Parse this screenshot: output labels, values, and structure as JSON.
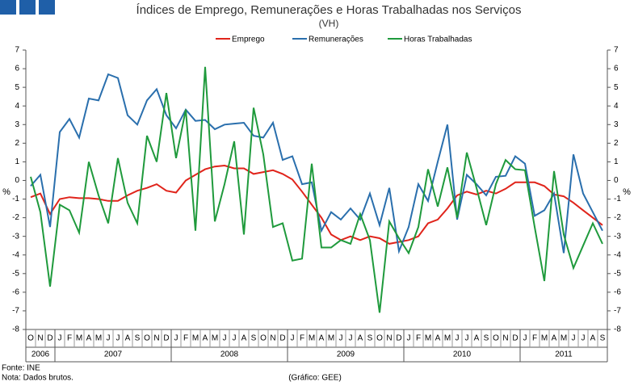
{
  "chart_data": {
    "type": "line",
    "title": "Índices de Emprego, Remunerações e Horas Trabalhadas nos Serviços",
    "subtitle": "(VH)",
    "y_label": "%",
    "y2_label": "%",
    "source": "Fonte: INE",
    "note": "Nota: Dados brutos.",
    "credit": "(Gráfico: GEE)",
    "categories": [
      "O",
      "N",
      "D",
      "J",
      "F",
      "M",
      "A",
      "M",
      "J",
      "J",
      "A",
      "S",
      "O",
      "N",
      "D",
      "J",
      "F",
      "M",
      "A",
      "M",
      "J",
      "J",
      "A",
      "S",
      "O",
      "N",
      "D",
      "J",
      "F",
      "M",
      "A",
      "M",
      "J",
      "J",
      "A",
      "S",
      "O",
      "N",
      "D",
      "J",
      "F",
      "M",
      "A",
      "M",
      "J",
      "J",
      "A",
      "S",
      "O",
      "N",
      "D",
      "J",
      "F",
      "M",
      "A",
      "M",
      "J",
      "J",
      "A",
      "S"
    ],
    "years": [
      "2006",
      "2007",
      "2008",
      "2009",
      "2010",
      "2011"
    ],
    "series": [
      {
        "name": "Emprego",
        "color": "#e0241b",
        "values": [
          -0.9,
          -0.7,
          -1.8,
          -1.0,
          -0.9,
          -0.95,
          -0.95,
          -1.0,
          -1.1,
          -1.1,
          -0.8,
          -0.55,
          -0.4,
          -0.2,
          -0.55,
          -0.65,
          0.0,
          0.3,
          0.6,
          0.75,
          0.8,
          0.65,
          0.65,
          0.35,
          0.45,
          0.55,
          0.35,
          0.05,
          -0.6,
          -1.3,
          -2.0,
          -2.9,
          -3.2,
          -3.0,
          -3.2,
          -3.0,
          -3.1,
          -3.4,
          -3.3,
          -3.2,
          -3.0,
          -2.3,
          -2.1,
          -1.5,
          -0.8,
          -0.6,
          -0.75,
          -0.55,
          -0.7,
          -0.45,
          -0.1,
          -0.1,
          -0.1,
          -0.3,
          -0.75,
          -0.85,
          -1.2,
          -1.6,
          -2.0,
          -2.4
        ]
      },
      {
        "name": "Remunerações",
        "color": "#2a6fad",
        "values": [
          -0.3,
          0.3,
          -2.5,
          2.6,
          3.3,
          2.3,
          4.4,
          4.3,
          5.7,
          5.5,
          3.5,
          3.0,
          4.3,
          4.9,
          3.5,
          2.8,
          3.8,
          3.2,
          3.25,
          2.75,
          3.0,
          3.05,
          3.1,
          2.4,
          2.3,
          3.1,
          1.1,
          1.3,
          -0.2,
          -0.1,
          -2.7,
          -1.7,
          -2.1,
          -1.5,
          -2.1,
          -0.7,
          -2.4,
          -0.4,
          -3.8,
          -2.5,
          -0.2,
          -1.1,
          1.0,
          3.0,
          -2.1,
          0.3,
          -0.2,
          -0.8,
          0.2,
          0.25,
          1.3,
          0.9,
          -1.9,
          -1.6,
          -0.7,
          -3.9,
          1.4,
          -0.7,
          -1.7,
          -2.7
        ]
      },
      {
        "name": "Horas Trabalhadas",
        "color": "#1f9a3c",
        "values": [
          0.2,
          -1.7,
          -5.7,
          -1.3,
          -1.6,
          -2.8,
          1.0,
          -0.8,
          -2.3,
          1.2,
          -1.2,
          -2.3,
          2.4,
          1.0,
          4.7,
          1.2,
          3.8,
          -2.7,
          6.1,
          -2.2,
          -0.2,
          2.1,
          -2.9,
          3.9,
          1.4,
          -2.5,
          -2.3,
          -4.3,
          -4.2,
          0.9,
          -3.6,
          -3.6,
          -3.2,
          -3.4,
          -1.8,
          -3.2,
          -7.1,
          -2.2,
          -3.1,
          -3.9,
          -2.5,
          0.6,
          -1.4,
          0.7,
          -2.0,
          1.5,
          -0.4,
          -2.4,
          -0.2,
          1.1,
          0.6,
          0.55,
          -2.5,
          -5.4,
          0.5,
          -2.9,
          -4.7,
          -3.5,
          -2.3,
          -3.4
        ]
      }
    ],
    "ylim": [
      -8,
      7
    ],
    "yticks": [
      -8,
      -7,
      -6,
      -5,
      -4,
      -3,
      -2,
      -1,
      0,
      1,
      2,
      3,
      4,
      5,
      6,
      7
    ],
    "y2lim": [
      -8,
      7
    ],
    "y2ticks": [
      -8,
      -7,
      -6,
      -5,
      -4,
      -3,
      -2,
      -1,
      0,
      1,
      2,
      3,
      4,
      5,
      6,
      7
    ],
    "legend": "top"
  }
}
